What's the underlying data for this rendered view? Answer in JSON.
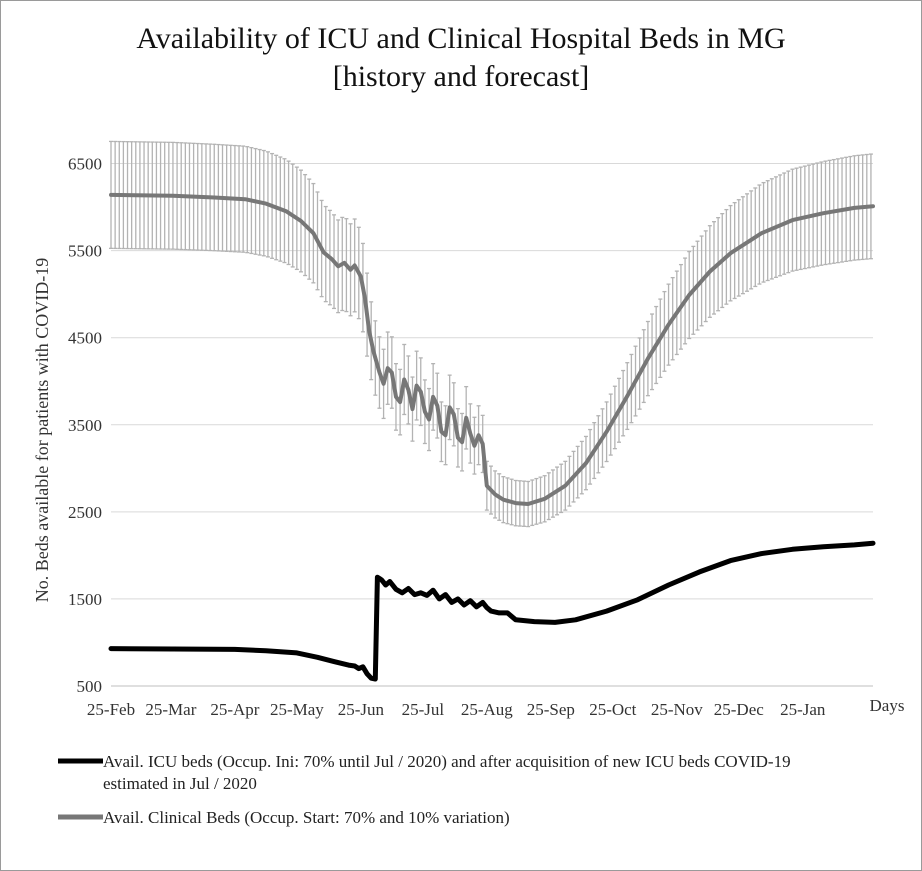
{
  "chart_data": {
    "type": "line",
    "title": [
      "Availability of ICU and Clinical Hospital Beds in MG",
      "[history and forecast]"
    ],
    "ylabel": "No. Beds available for patients with COVID-19",
    "xlabel": "Days",
    "ylim": [
      500,
      7000
    ],
    "yticks": [
      500,
      1500,
      2500,
      3500,
      4500,
      5500,
      6500
    ],
    "xlim": [
      0,
      369
    ],
    "xticks": [
      {
        "label": "25-Feb",
        "day": 0
      },
      {
        "label": "25-Mar",
        "day": 29
      },
      {
        "label": "25-Apr",
        "day": 60
      },
      {
        "label": "25-May",
        "day": 90
      },
      {
        "label": "25-Jun",
        "day": 121
      },
      {
        "label": "25-Jul",
        "day": 151
      },
      {
        "label": "25-Aug",
        "day": 182
      },
      {
        "label": "25-Sep",
        "day": 213
      },
      {
        "label": "25-Oct",
        "day": 243
      },
      {
        "label": "25-Nov",
        "day": 274
      },
      {
        "label": "25-Dec",
        "day": 304
      },
      {
        "label": "25-Jan",
        "day": 335
      }
    ],
    "grid": true,
    "legend_position": "bottom",
    "series": [
      {
        "name": "Avail. ICU beds (Occup. Ini: 70% until Jul / 2020) and after acquisition of new ICU beds COVID-19",
        "name_line2": "estimated in Jul / 2020",
        "color": "#000000",
        "points": [
          [
            0,
            930
          ],
          [
            30,
            925
          ],
          [
            60,
            920
          ],
          [
            75,
            905
          ],
          [
            90,
            880
          ],
          [
            100,
            830
          ],
          [
            108,
            780
          ],
          [
            115,
            740
          ],
          [
            118,
            730
          ],
          [
            120,
            700
          ],
          [
            122,
            720
          ],
          [
            124,
            640
          ],
          [
            126,
            590
          ],
          [
            128,
            580
          ],
          [
            129,
            1750
          ],
          [
            131,
            1720
          ],
          [
            133,
            1660
          ],
          [
            135,
            1700
          ],
          [
            138,
            1610
          ],
          [
            141,
            1570
          ],
          [
            144,
            1620
          ],
          [
            147,
            1550
          ],
          [
            150,
            1570
          ],
          [
            153,
            1540
          ],
          [
            156,
            1600
          ],
          [
            159,
            1500
          ],
          [
            162,
            1550
          ],
          [
            165,
            1460
          ],
          [
            168,
            1500
          ],
          [
            171,
            1430
          ],
          [
            174,
            1480
          ],
          [
            177,
            1410
          ],
          [
            180,
            1460
          ],
          [
            182,
            1400
          ],
          [
            184,
            1360
          ],
          [
            188,
            1340
          ],
          [
            192,
            1340
          ],
          [
            196,
            1260
          ],
          [
            205,
            1240
          ],
          [
            215,
            1230
          ],
          [
            225,
            1260
          ],
          [
            240,
            1360
          ],
          [
            255,
            1490
          ],
          [
            270,
            1660
          ],
          [
            285,
            1810
          ],
          [
            300,
            1940
          ],
          [
            315,
            2020
          ],
          [
            330,
            2070
          ],
          [
            345,
            2100
          ],
          [
            360,
            2120
          ],
          [
            369,
            2140
          ]
        ]
      },
      {
        "name": "Avail. Clinical Beds (Occup. Start: 70% and 10% variation)",
        "color": "#777777",
        "error_pct": 0.1,
        "points": [
          [
            0,
            6140
          ],
          [
            30,
            6130
          ],
          [
            50,
            6110
          ],
          [
            65,
            6090
          ],
          [
            75,
            6040
          ],
          [
            85,
            5950
          ],
          [
            92,
            5840
          ],
          [
            98,
            5700
          ],
          [
            103,
            5480
          ],
          [
            107,
            5400
          ],
          [
            110,
            5320
          ],
          [
            113,
            5360
          ],
          [
            116,
            5280
          ],
          [
            118,
            5330
          ],
          [
            121,
            5200
          ],
          [
            123,
            4950
          ],
          [
            125,
            4580
          ],
          [
            127,
            4350
          ],
          [
            130,
            4100
          ],
          [
            132,
            3970
          ],
          [
            134,
            4150
          ],
          [
            136,
            4100
          ],
          [
            138,
            3820
          ],
          [
            140,
            3760
          ],
          [
            142,
            4020
          ],
          [
            144,
            3900
          ],
          [
            146,
            3680
          ],
          [
            148,
            3950
          ],
          [
            150,
            3880
          ],
          [
            152,
            3650
          ],
          [
            154,
            3560
          ],
          [
            156,
            3820
          ],
          [
            158,
            3720
          ],
          [
            160,
            3420
          ],
          [
            162,
            3380
          ],
          [
            164,
            3700
          ],
          [
            166,
            3620
          ],
          [
            168,
            3350
          ],
          [
            170,
            3300
          ],
          [
            172,
            3580
          ],
          [
            174,
            3400
          ],
          [
            176,
            3260
          ],
          [
            178,
            3380
          ],
          [
            180,
            3280
          ],
          [
            182,
            2800
          ],
          [
            186,
            2700
          ],
          [
            190,
            2640
          ],
          [
            196,
            2600
          ],
          [
            202,
            2590
          ],
          [
            210,
            2650
          ],
          [
            220,
            2800
          ],
          [
            230,
            3060
          ],
          [
            240,
            3420
          ],
          [
            250,
            3830
          ],
          [
            260,
            4260
          ],
          [
            270,
            4650
          ],
          [
            280,
            4990
          ],
          [
            290,
            5260
          ],
          [
            300,
            5470
          ],
          [
            315,
            5700
          ],
          [
            330,
            5850
          ],
          [
            345,
            5930
          ],
          [
            360,
            5990
          ],
          [
            369,
            6010
          ]
        ]
      }
    ]
  }
}
